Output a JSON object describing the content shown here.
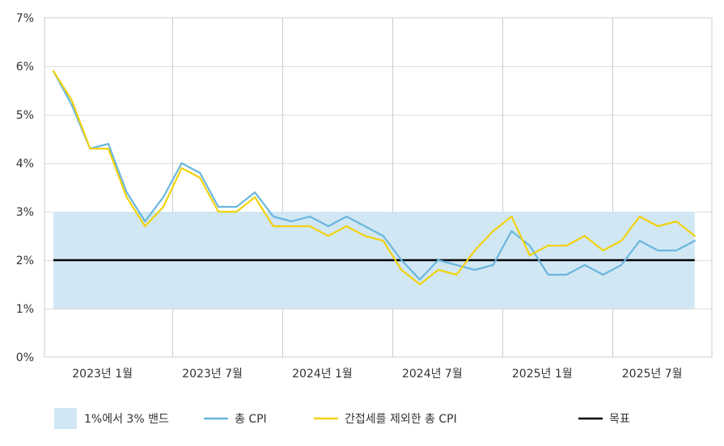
{
  "chart_data": {
    "type": "line",
    "title": "",
    "xlabel": "",
    "ylabel": "",
    "ylim": [
      0,
      7
    ],
    "y_ticks": [
      {
        "value": 0,
        "label": "0%"
      },
      {
        "value": 1,
        "label": "1%"
      },
      {
        "value": 2,
        "label": "2%"
      },
      {
        "value": 3,
        "label": "3%"
      },
      {
        "value": 4,
        "label": "4%"
      },
      {
        "value": 5,
        "label": "5%"
      },
      {
        "value": 6,
        "label": "6%"
      },
      {
        "value": 7,
        "label": "7%"
      }
    ],
    "x": [
      "2022-12",
      "2023-01",
      "2023-02",
      "2023-03",
      "2023-04",
      "2023-05",
      "2023-06",
      "2023-07",
      "2023-08",
      "2023-09",
      "2023-10",
      "2023-11",
      "2023-12",
      "2024-01",
      "2024-02",
      "2024-03",
      "2024-04",
      "2024-05",
      "2024-06",
      "2024-07",
      "2024-08",
      "2024-09",
      "2024-10",
      "2024-11",
      "2024-12",
      "2025-01",
      "2025-02",
      "2025-03",
      "2025-04",
      "2025-05",
      "2025-06",
      "2025-07",
      "2025-08",
      "2025-09",
      "2025-10",
      "2025-11",
      "2025-12"
    ],
    "x_tick_labels": [
      {
        "index": 1,
        "label": "2023년 1월"
      },
      {
        "index": 7,
        "label": "2023년 7월"
      },
      {
        "index": 13,
        "label": "2024년 1월"
      },
      {
        "index": 19,
        "label": "2024년 7월"
      },
      {
        "index": 25,
        "label": "2025년 1월"
      },
      {
        "index": 31,
        "label": "2025년 7월"
      }
    ],
    "x_gridlines_at": [
      6,
      12,
      18,
      24,
      30
    ],
    "band": {
      "name": "1%에서 3% 밴드",
      "low": 1,
      "high": 3,
      "color": "#d1e7f4"
    },
    "series": [
      {
        "name": "총 CPI",
        "color": "#6ab6de",
        "values": [
          5.9,
          5.2,
          4.3,
          4.4,
          3.4,
          2.8,
          3.3,
          4.0,
          3.8,
          3.1,
          3.1,
          3.4,
          2.9,
          2.8,
          2.9,
          2.7,
          2.9,
          2.7,
          2.5,
          2.0,
          1.6,
          2.0,
          1.9,
          1.8,
          1.9,
          2.6,
          2.3,
          1.7,
          1.7,
          1.9,
          1.7,
          1.9,
          2.4,
          2.2,
          2.2,
          2.4,
          null
        ]
      },
      {
        "name": "간접세를 제외한 총 CPI",
        "color": "#f2d20f",
        "values": [
          5.9,
          5.3,
          4.3,
          4.3,
          3.3,
          2.7,
          3.1,
          3.9,
          3.7,
          3.0,
          3.0,
          3.3,
          2.7,
          2.7,
          2.7,
          2.5,
          2.7,
          2.5,
          2.4,
          1.8,
          1.5,
          1.8,
          1.7,
          2.2,
          2.6,
          2.9,
          2.1,
          2.3,
          2.3,
          2.5,
          2.2,
          2.4,
          2.9,
          2.7,
          2.8,
          2.5,
          null
        ]
      }
    ],
    "target": {
      "name": "목표",
      "value": 2,
      "color": "#000000"
    },
    "legend": {
      "placement": "bottom"
    },
    "grid": true
  }
}
